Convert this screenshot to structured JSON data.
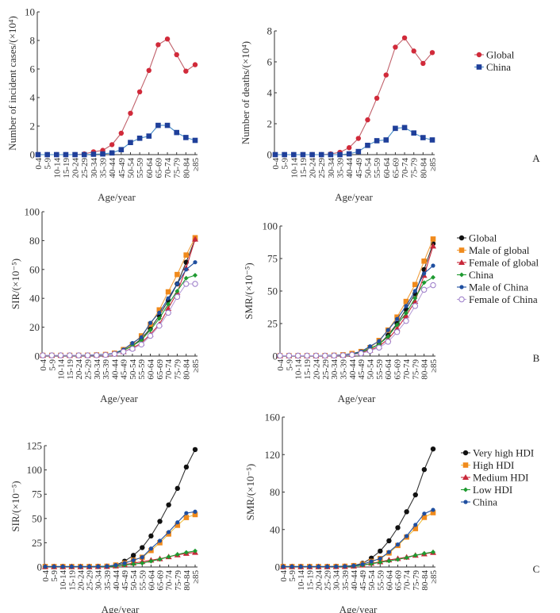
{
  "figure": {
    "age_groups": [
      "0-4",
      "5-9",
      "10-14",
      "15-19",
      "20-24",
      "25-29",
      "30-34",
      "35-39",
      "40-44",
      "45-49",
      "50-54",
      "55-59",
      "60-64",
      "65-69",
      "70-74",
      "75-79",
      "80-84",
      "≥85"
    ]
  },
  "chart_data": [
    {
      "id": "A1",
      "panel": "A",
      "type": "line",
      "xlabel": "Age/year",
      "ylabel": "Number of incident cases/(×10⁴)",
      "ylim": [
        0,
        10
      ],
      "yticks": [
        "0",
        "2",
        "4",
        "6",
        "8",
        "10"
      ],
      "ytick_values": [
        0,
        2,
        4,
        6,
        8,
        10
      ],
      "legend": "none",
      "series": [
        {
          "name": "Global",
          "color": "#d12a3a",
          "line": "#c0606a",
          "marker": "circle",
          "values": [
            0,
            0,
            0,
            0,
            0,
            0.05,
            0.2,
            0.3,
            0.7,
            1.5,
            2.9,
            4.4,
            5.9,
            7.7,
            8.1,
            7.0,
            5.85,
            6.3
          ]
        },
        {
          "name": "China",
          "color": "#1f3f9a",
          "line": "#4a8fc8",
          "marker": "square",
          "values": [
            0,
            0,
            0,
            0,
            0,
            0,
            0.03,
            0.05,
            0.12,
            0.35,
            0.85,
            1.15,
            1.3,
            2.05,
            2.05,
            1.55,
            1.2,
            1.0
          ]
        }
      ]
    },
    {
      "id": "A2",
      "panel": "A",
      "type": "line",
      "xlabel": "Age/year",
      "ylabel": "Number of deaths/(×10⁴)",
      "ylim": [
        0,
        8
      ],
      "yticks": [
        "0",
        "2",
        "4",
        "6",
        "8"
      ],
      "ytick_values": [
        0,
        2,
        4,
        6,
        8
      ],
      "legend": "right",
      "panel_letter": "A",
      "series": [
        {
          "name": "Global",
          "color": "#d12a3a",
          "line": "#c0606a",
          "marker": "circle",
          "values": [
            0,
            0,
            0,
            0,
            0,
            0,
            0.05,
            0.15,
            0.45,
            1.05,
            2.25,
            3.65,
            5.15,
            6.95,
            7.55,
            6.7,
            5.9,
            6.6
          ]
        },
        {
          "name": "China",
          "color": "#1f3f9a",
          "line": "#4a8fc8",
          "marker": "square",
          "values": [
            0,
            0,
            0,
            0,
            0,
            0,
            0,
            0,
            0.05,
            0.2,
            0.6,
            0.9,
            0.95,
            1.7,
            1.75,
            1.4,
            1.1,
            0.95
          ]
        }
      ]
    },
    {
      "id": "B1",
      "panel": "B",
      "type": "line",
      "xlabel": "Age/year",
      "ylabel": "SIR/(×10⁻⁵)",
      "ylim": [
        0,
        100
      ],
      "yticks": [
        "0",
        "20",
        "40",
        "60",
        "80",
        "100"
      ],
      "ytick_values": [
        0,
        20,
        40,
        60,
        80,
        100
      ],
      "legend": "none",
      "series": [
        {
          "name": "Global",
          "color": "#111111",
          "line": "#333333",
          "marker": "circle",
          "values": [
            0.5,
            0.5,
            0.5,
            0.5,
            0.5,
            0.6,
            0.8,
            1.0,
            2.0,
            4.0,
            7.0,
            12,
            19,
            28,
            38.5,
            50,
            65,
            81
          ]
        },
        {
          "name": "Male of global",
          "color": "#f08a1c",
          "line": "#f0a040",
          "marker": "square",
          "values": [
            0.5,
            0.5,
            0.5,
            0.5,
            0.5,
            0.6,
            0.8,
            1.1,
            2.0,
            4.5,
            8,
            14,
            22,
            32,
            44.5,
            56.5,
            70,
            82
          ]
        },
        {
          "name": "Female of global",
          "color": "#c8283a",
          "line": "#c8283a",
          "marker": "triangle",
          "values": [
            0.5,
            0.5,
            0.5,
            0.5,
            0.5,
            0.5,
            0.7,
            0.9,
            1.5,
            3.0,
            5.5,
            9,
            15,
            22,
            33,
            44,
            61,
            81
          ]
        },
        {
          "name": "China",
          "color": "#1e9a30",
          "line": "#1e9a30",
          "marker": "diamond",
          "values": [
            0.5,
            0.5,
            0.5,
            0.5,
            0.5,
            0.6,
            0.8,
            1.0,
            2.0,
            4.0,
            7.0,
            11,
            18,
            26,
            36,
            45,
            54,
            56
          ]
        },
        {
          "name": "Male of China",
          "color": "#1f4fa0",
          "line": "#1f4fa0",
          "marker": "dot",
          "values": [
            0.5,
            0.5,
            0.5,
            0.5,
            0.5,
            0.6,
            0.8,
            1.1,
            2.0,
            4.5,
            9,
            13,
            23,
            30,
            40,
            50,
            60,
            65
          ]
        },
        {
          "name": "Female of China",
          "color": "#9a7ac8",
          "line": "#b8a0d8",
          "marker": "open-circle",
          "values": [
            0.5,
            0.5,
            0.5,
            0.5,
            0.5,
            0.5,
            0.6,
            0.8,
            1.5,
            3.0,
            5.0,
            8,
            14,
            21,
            30,
            41,
            50,
            50
          ]
        }
      ]
    },
    {
      "id": "B2",
      "panel": "B",
      "type": "line",
      "xlabel": "Age/year",
      "ylabel": "SMR/(×10⁻⁵)",
      "ylim": [
        0,
        100
      ],
      "yticks": [
        "0",
        "25",
        "50",
        "75",
        "100"
      ],
      "ytick_values": [
        0,
        25,
        50,
        75,
        100
      ],
      "legend": "right",
      "panel_letter": "B",
      "series": [
        {
          "name": "Global",
          "color": "#111111",
          "line": "#333333",
          "marker": "circle",
          "values": [
            0.3,
            0.3,
            0.3,
            0.3,
            0.3,
            0.3,
            0.5,
            0.8,
            1.5,
            3.0,
            5.5,
            9,
            16,
            25,
            36,
            48,
            66.5,
            86.5
          ]
        },
        {
          "name": "Male of global",
          "color": "#f08a1c",
          "line": "#f0a040",
          "marker": "square",
          "values": [
            0.3,
            0.3,
            0.3,
            0.3,
            0.3,
            0.4,
            0.6,
            1.0,
            2.0,
            3.5,
            6.5,
            12,
            20,
            30,
            42,
            55,
            73,
            90
          ]
        },
        {
          "name": "Female of global",
          "color": "#c8283a",
          "line": "#c8283a",
          "marker": "triangle",
          "values": [
            0.3,
            0.3,
            0.3,
            0.3,
            0.3,
            0.3,
            0.4,
            0.6,
            1.2,
            2.5,
            4.5,
            7.5,
            13,
            21,
            31,
            42,
            62,
            84.5
          ]
        },
        {
          "name": "China",
          "color": "#1e9a30",
          "line": "#1e9a30",
          "marker": "diamond",
          "values": [
            0.3,
            0.3,
            0.3,
            0.3,
            0.3,
            0.3,
            0.5,
            0.8,
            1.5,
            3.0,
            6,
            9,
            15,
            24,
            33,
            44.5,
            56.5,
            60.5
          ]
        },
        {
          "name": "Male of China",
          "color": "#1f4fa0",
          "line": "#1f4fa0",
          "marker": "dot",
          "values": [
            0.3,
            0.3,
            0.3,
            0.3,
            0.3,
            0.4,
            0.6,
            0.9,
            1.8,
            3.5,
            7.5,
            11.5,
            20,
            28.5,
            38.5,
            50,
            63.5,
            69.5
          ]
        },
        {
          "name": "Female of China",
          "color": "#9a7ac8",
          "line": "#b8a0d8",
          "marker": "open-circle",
          "values": [
            0.3,
            0.3,
            0.3,
            0.3,
            0.3,
            0.3,
            0.4,
            0.6,
            1.0,
            2.0,
            4.0,
            6.5,
            11,
            18.5,
            27,
            38.5,
            51,
            54.5
          ]
        }
      ]
    },
    {
      "id": "C1",
      "panel": "C",
      "type": "line",
      "xlabel": "Age/year",
      "ylabel": "SIR/(×10⁻⁵)",
      "ylim": [
        0,
        125
      ],
      "yticks": [
        "0",
        "25",
        "50",
        "75",
        "100",
        "125"
      ],
      "ytick_values": [
        0,
        25,
        50,
        75,
        100,
        125
      ],
      "legend": "none",
      "series": [
        {
          "name": "Very high HDI",
          "color": "#111111",
          "line": "#333333",
          "marker": "circle",
          "values": [
            0.5,
            0.5,
            0.5,
            0.5,
            0.5,
            0.5,
            0.6,
            0.8,
            2.0,
            6,
            12,
            20,
            32,
            47,
            64,
            81,
            103,
            121
          ]
        },
        {
          "name": "High HDI",
          "color": "#f08a1c",
          "line": "#f0c040",
          "marker": "square",
          "values": [
            0.5,
            0.5,
            0.5,
            0.5,
            0.5,
            0.5,
            0.6,
            0.8,
            2.0,
            4,
            7,
            10,
            17,
            25,
            34,
            43,
            51,
            54
          ]
        },
        {
          "name": "Medium HDI",
          "color": "#c8283a",
          "line": "#c8283a",
          "marker": "triangle",
          "values": [
            0.3,
            0.3,
            0.3,
            0.3,
            0.3,
            0.3,
            0.4,
            0.5,
            1.0,
            2.5,
            4,
            5.5,
            7,
            8.5,
            10.5,
            12.5,
            14,
            15
          ]
        },
        {
          "name": "Low HDI",
          "color": "#1e9a30",
          "line": "#1e9a30",
          "marker": "diamond",
          "values": [
            0.3,
            0.3,
            0.3,
            0.3,
            0.3,
            0.3,
            0.4,
            0.5,
            1.0,
            2.0,
            3,
            4,
            6,
            8,
            10.5,
            13,
            15,
            16.5
          ]
        },
        {
          "name": "China",
          "color": "#1f4fa0",
          "line": "#1f4fa0",
          "marker": "dot",
          "values": [
            0.5,
            0.5,
            0.5,
            0.5,
            0.5,
            0.5,
            0.6,
            0.8,
            2.0,
            4,
            7,
            10,
            19,
            27,
            36,
            46,
            55.5,
            57
          ]
        }
      ]
    },
    {
      "id": "C2",
      "panel": "C",
      "type": "line",
      "xlabel": "Age/year",
      "ylabel": "SMR/(×10⁻⁵)",
      "ylim": [
        0,
        160
      ],
      "yticks": [
        "0",
        "40",
        "80",
        "120",
        "160"
      ],
      "ytick_values": [
        0,
        40,
        80,
        120,
        160
      ],
      "legend": "right",
      "panel_letter": "C",
      "series": [
        {
          "name": "Very high HDI",
          "color": "#111111",
          "line": "#333333",
          "marker": "circle",
          "values": [
            0.5,
            0.5,
            0.5,
            0.5,
            0.5,
            0.5,
            0.6,
            0.8,
            1.5,
            4,
            9.5,
            17,
            28,
            42,
            59,
            77,
            104,
            126
          ]
        },
        {
          "name": "High HDI",
          "color": "#f08a1c",
          "line": "#f0c040",
          "marker": "square",
          "values": [
            0.5,
            0.5,
            0.5,
            0.5,
            0.5,
            0.5,
            0.6,
            0.8,
            1.5,
            3,
            6,
            9,
            15,
            23,
            32,
            41,
            53,
            58
          ]
        },
        {
          "name": "Medium HDI",
          "color": "#c8283a",
          "line": "#c8283a",
          "marker": "triangle",
          "values": [
            0.3,
            0.3,
            0.3,
            0.3,
            0.3,
            0.3,
            0.4,
            0.5,
            1.0,
            2,
            4,
            5.5,
            7.5,
            9,
            10.5,
            12.5,
            14,
            15.5
          ]
        },
        {
          "name": "Low HDI",
          "color": "#1e9a30",
          "line": "#1e9a30",
          "marker": "diamond",
          "values": [
            0.3,
            0.3,
            0.3,
            0.3,
            0.3,
            0.3,
            0.4,
            0.5,
            1.0,
            2,
            3.5,
            5,
            6.5,
            8,
            10,
            12.5,
            14.5,
            16
          ]
        },
        {
          "name": "China",
          "color": "#1f4fa0",
          "line": "#1f4fa0",
          "marker": "dot",
          "values": [
            0.5,
            0.5,
            0.5,
            0.5,
            0.5,
            0.5,
            0.6,
            0.8,
            1.5,
            3,
            6,
            9,
            16,
            24,
            33,
            45,
            57,
            61
          ]
        }
      ]
    }
  ]
}
